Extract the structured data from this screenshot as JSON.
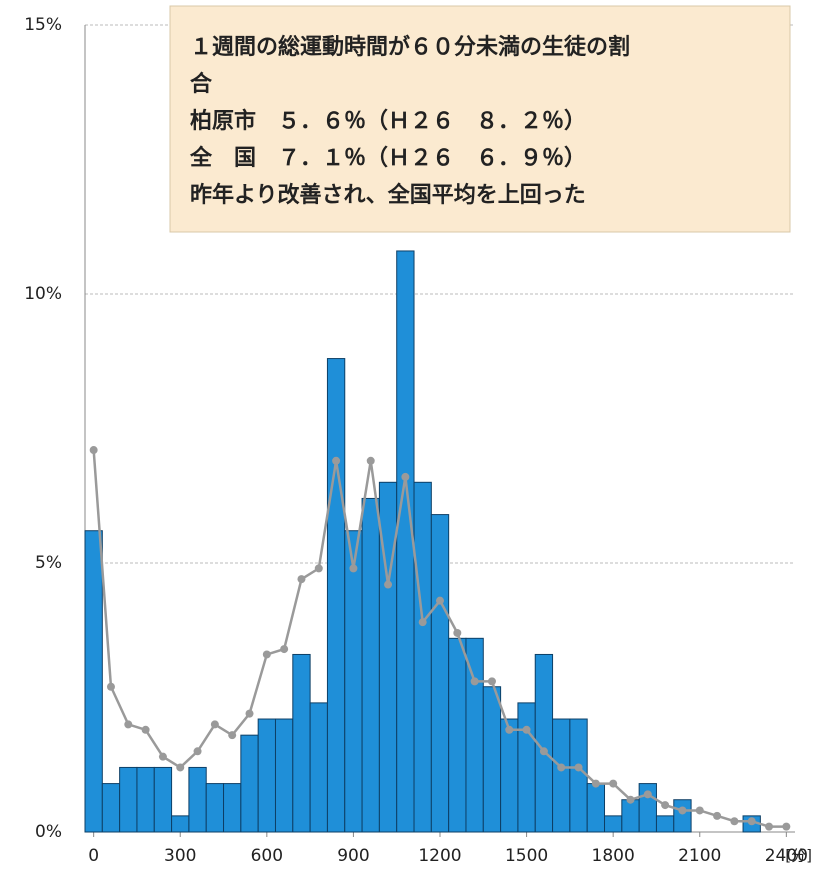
{
  "chart_data": {
    "type": "bar",
    "annotation": [
      "１週間の総運動時間が６０分未満の生徒の割",
      "合",
      "柏原市　５．６％（Ｈ２６　８．２％）",
      "全　国　７．１％（Ｈ２６　６．９％）",
      "昨年より改善され、全国平均を上回った"
    ],
    "x_label": "[分]",
    "x": [
      0,
      60,
      120,
      180,
      240,
      300,
      360,
      420,
      480,
      540,
      600,
      660,
      720,
      780,
      840,
      900,
      960,
      1020,
      1080,
      1140,
      1200,
      1260,
      1320,
      1380,
      1440,
      1500,
      1560,
      1620,
      1680,
      1740,
      1800,
      1860,
      1920,
      1980,
      2040,
      2100,
      2160,
      2220,
      2280,
      2340,
      2400
    ],
    "series": [
      {
        "type": "bar",
        "color": "#1f8fd8",
        "values": [
          5.6,
          0.9,
          1.2,
          1.2,
          1.2,
          0.3,
          1.2,
          0.9,
          0.9,
          1.8,
          2.1,
          2.1,
          3.3,
          2.4,
          8.8,
          5.6,
          6.2,
          6.5,
          10.8,
          6.5,
          5.9,
          3.6,
          3.6,
          2.7,
          2.1,
          2.4,
          3.3,
          2.1,
          2.1,
          0.9,
          0.3,
          0.6,
          0.9,
          0.3,
          0.6,
          0,
          0,
          0,
          0.3,
          0,
          0
        ]
      },
      {
        "type": "line",
        "color": "#9a9a9a",
        "values": [
          7.1,
          2.7,
          2.0,
          1.9,
          1.4,
          1.2,
          1.5,
          2.0,
          1.8,
          2.2,
          3.3,
          3.4,
          4.7,
          4.9,
          6.9,
          4.9,
          6.9,
          4.6,
          6.6,
          3.9,
          4.3,
          3.7,
          2.8,
          2.8,
          1.9,
          1.9,
          1.5,
          1.2,
          1.2,
          0.9,
          0.9,
          0.6,
          0.7,
          0.5,
          0.4,
          0.4,
          0.3,
          0.2,
          0.2,
          0.1,
          0.1
        ]
      }
    ],
    "xlim": [
      -30,
      2430
    ],
    "xticks": [
      0,
      300,
      600,
      900,
      1200,
      1500,
      1800,
      2100,
      2400
    ],
    "ylim": [
      0,
      15
    ],
    "yticks": [
      {
        "value": 0,
        "label": "0%"
      },
      {
        "value": 5,
        "label": "5%"
      },
      {
        "value": 10,
        "label": "10%"
      },
      {
        "value": 15,
        "label": "15%"
      }
    ],
    "grid": true
  }
}
